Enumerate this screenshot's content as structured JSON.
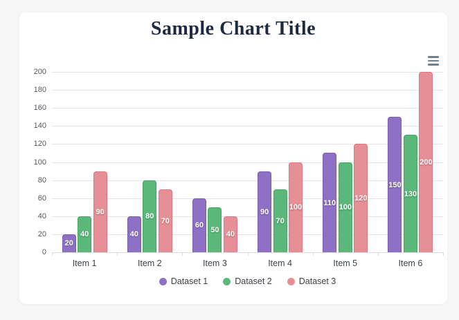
{
  "page": {
    "background": "#f6f6f7",
    "card_background": "#ffffff"
  },
  "toolbar": {
    "menu_icon": "hamburger-icon",
    "icon_color": "#6e8192"
  },
  "chart_data": {
    "type": "bar",
    "title": "Sample Chart Title",
    "title_color": "#1d2a3f",
    "categories": [
      "Item 1",
      "Item 2",
      "Item 3",
      "Item 4",
      "Item 5",
      "Item 6"
    ],
    "series": [
      {
        "name": "Dataset 1",
        "values": [
          20,
          40,
          60,
          90,
          110,
          150
        ],
        "fill": "#8e71c5",
        "stroke": "#7a5cb4"
      },
      {
        "name": "Dataset 2",
        "values": [
          40,
          80,
          50,
          70,
          100,
          130
        ],
        "fill": "#5bb87a",
        "stroke": "#47a566"
      },
      {
        "name": "Dataset 3",
        "values": [
          90,
          70,
          40,
          100,
          120,
          200
        ],
        "fill": "#e78f97",
        "stroke": "#e07681"
      }
    ],
    "ylim": [
      0,
      200
    ],
    "y_ticks": [
      0,
      20,
      40,
      60,
      80,
      100,
      120,
      140,
      160,
      180,
      200
    ],
    "grid": true,
    "gridline_color": "#e4e4e4",
    "legend_position": "bottom",
    "value_labels": "inside-center-white"
  }
}
